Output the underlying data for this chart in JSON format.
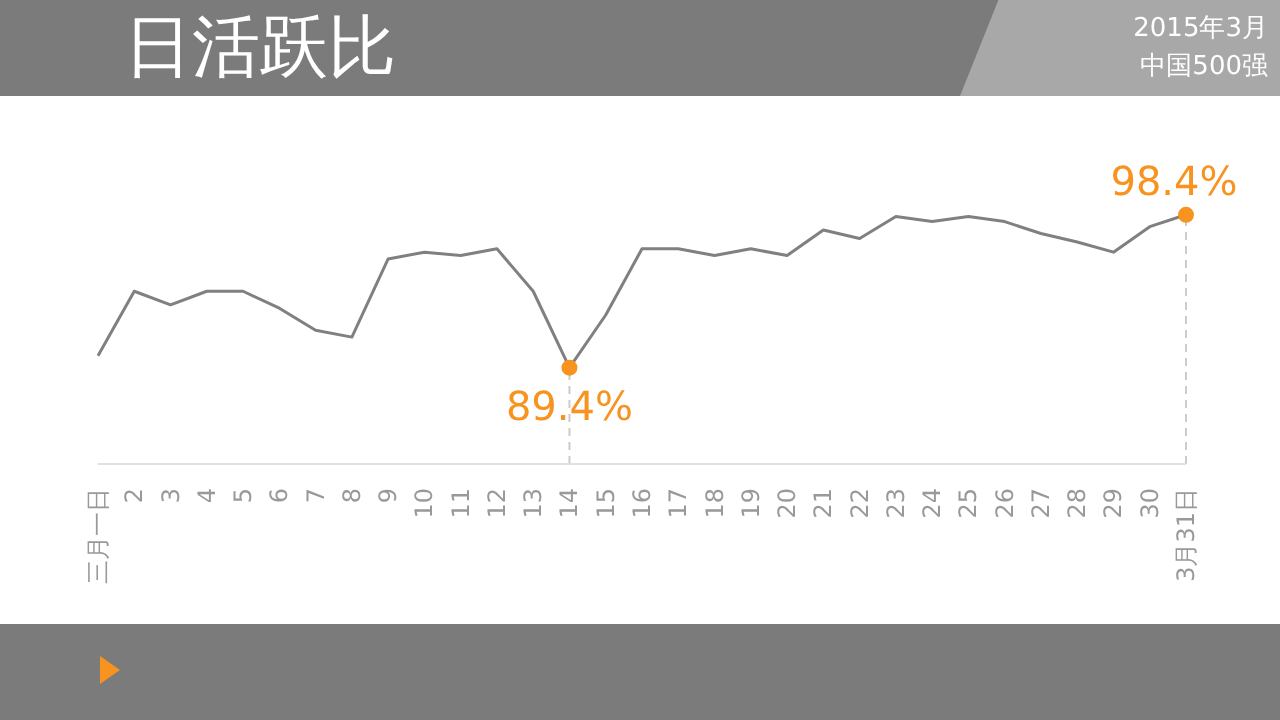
{
  "chart_data": {
    "type": "line",
    "title": "日活跃比",
    "subtitle": "2015年3月中国500强",
    "categories": [
      "三月一日",
      "2",
      "3",
      "4",
      "5",
      "6",
      "7",
      "8",
      "9",
      "10",
      "11",
      "12",
      "13",
      "14",
      "15",
      "16",
      "17",
      "18",
      "19",
      "20",
      "21",
      "22",
      "23",
      "24",
      "25",
      "26",
      "27",
      "28",
      "29",
      "30",
      "3月31日"
    ],
    "series": [
      {
        "color": "#808080",
        "values": [
          90.1,
          93.9,
          93.1,
          93.9,
          93.9,
          92.9,
          91.6,
          91.2,
          95.8,
          96.2,
          96.0,
          96.4,
          93.9,
          89.4,
          92.5,
          96.4,
          96.4,
          96.0,
          96.4,
          96.0,
          97.5,
          97.0,
          98.3,
          98.0,
          98.3,
          98.0,
          97.3,
          96.8,
          96.2,
          97.7,
          98.4
        ],
        "value_labels": [
          null,
          null,
          null,
          null,
          null,
          null,
          null,
          null,
          null,
          null,
          null,
          null,
          null,
          "89.4%",
          null,
          null,
          null,
          null,
          null,
          null,
          null,
          null,
          null,
          null,
          null,
          null,
          null,
          null,
          null,
          null,
          "98.4%"
        ]
      }
    ],
    "legend": false
  }
}
